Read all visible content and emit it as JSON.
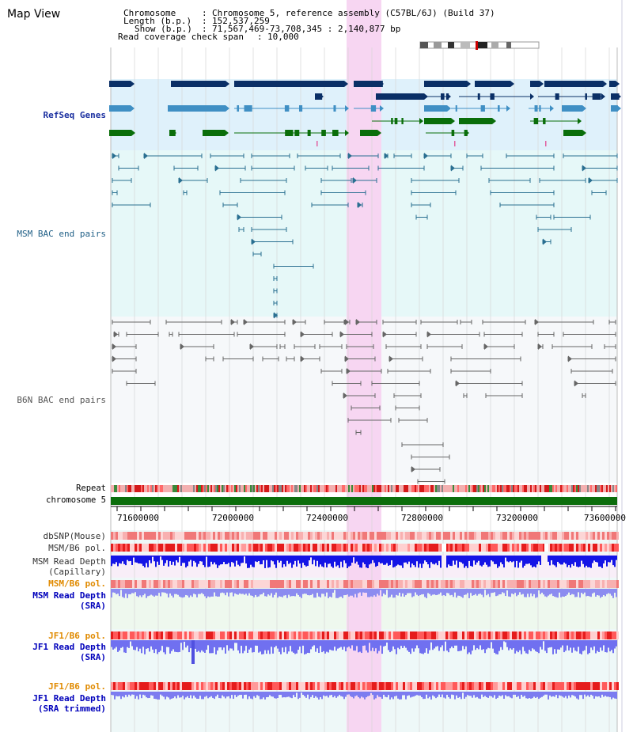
{
  "title": "Map View",
  "info": {
    "chromosome_label": "Chromosome",
    "chromosome_value": "Chromosome 5, reference assembly (C57BL/6J) (Build 37)",
    "length_label": "Length (b.p.)",
    "length_value": "152,537,259",
    "show_label": "Show (b.p.)",
    "show_value": "71,567,469-73,708,345 : 2,140,877 bp",
    "span_label": "Read coverage check span",
    "span_value": "10,000"
  },
  "tracks": {
    "refseq": "RefSeq Genes",
    "msm_bac": "MSM BAC end pairs",
    "b6n_bac": "B6N BAC end pairs",
    "repeat": "Repeat",
    "chromosome": "chromosome 5",
    "dbsnp": "dbSNP(Mouse)",
    "msm_b6_pol": "MSM/B6 pol.",
    "msm_depth_cap": "MSM Read Depth\n(Capillary)",
    "msm_b6_pol2": "MSM/B6 pol.",
    "msm_depth_sra": "MSM Read Depth\n(SRA)",
    "jf1_b6_pol": "JF1/B6 pol.",
    "jf1_depth_sra": "JF1 Read Depth\n(SRA)",
    "jf1_b6_pol2": "JF1/B6 pol.",
    "jf1_depth_trim": "JF1 Read Depth\n(SRA trimmed)"
  },
  "axis": {
    "ticks": [
      "71600000",
      "72000000",
      "72400000",
      "72800000",
      "73200000",
      "73600000"
    ]
  },
  "colors": {
    "refseq_bg": "#dff1fb",
    "msm_bg": "#e6f8f8",
    "b6n_bg": "#f6f8fa",
    "highlight": "#f7d6f2",
    "refseq_label": "#1a2fa0",
    "msm_label": "#1f5f86",
    "b6n_label": "#555555",
    "pol_label": "#e08a00",
    "depth_label": "#0000bb",
    "chrom_bar": "#0c6e0c"
  }
}
